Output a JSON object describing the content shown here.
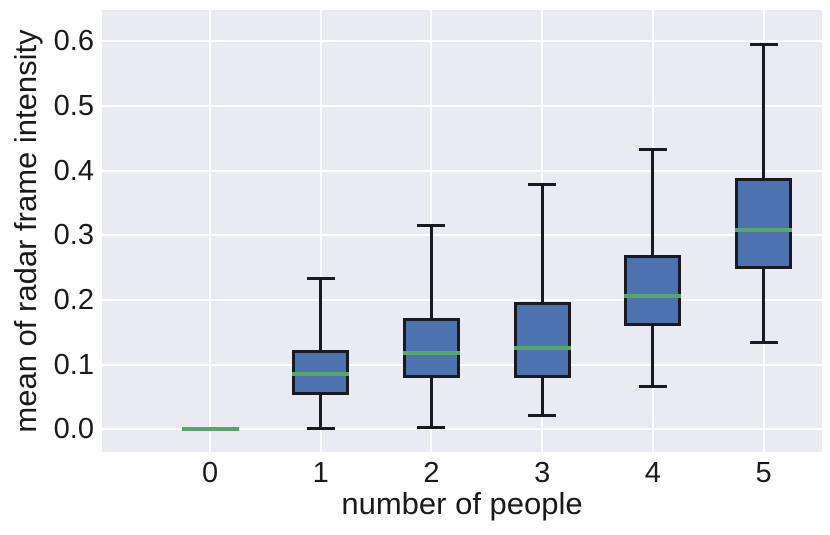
{
  "chart_data": {
    "type": "box",
    "title": "",
    "xlabel": "number of people",
    "ylabel": "mean of radar frame intensity",
    "categories": [
      "0",
      "1",
      "2",
      "3",
      "4",
      "5"
    ],
    "series": [
      {
        "category": "0",
        "whisker_low": 0.0,
        "q1": 0.0,
        "median": 0.0,
        "q3": 0.0,
        "whisker_high": 0.0
      },
      {
        "category": "1",
        "whisker_low": 0.001,
        "q1": 0.053,
        "median": 0.085,
        "q3": 0.123,
        "whisker_high": 0.233
      },
      {
        "category": "2",
        "whisker_low": 0.003,
        "q1": 0.08,
        "median": 0.118,
        "q3": 0.172,
        "whisker_high": 0.315
      },
      {
        "category": "3",
        "whisker_low": 0.022,
        "q1": 0.08,
        "median": 0.126,
        "q3": 0.197,
        "whisker_high": 0.378
      },
      {
        "category": "4",
        "whisker_low": 0.067,
        "q1": 0.16,
        "median": 0.206,
        "q3": 0.27,
        "whisker_high": 0.432
      },
      {
        "category": "5",
        "whisker_low": 0.134,
        "q1": 0.248,
        "median": 0.308,
        "q3": 0.388,
        "whisker_high": 0.595
      }
    ],
    "yticks": [
      0.0,
      0.1,
      0.2,
      0.3,
      0.4,
      0.5,
      0.6
    ],
    "ytick_labels": [
      "0.0",
      "0.1",
      "0.2",
      "0.3",
      "0.4",
      "0.5",
      "0.6"
    ],
    "ylim": [
      -0.035,
      0.6483
    ],
    "xlim": [
      -0.976,
      5.528
    ],
    "grid": "on",
    "legend": "none",
    "outliers": [],
    "colors": {
      "box_fill": "#4C72B0",
      "box_edge": "#191922",
      "median": "#55A868",
      "whisker": "#191922",
      "plot_background": "#EAEAF2",
      "gridline": "#FFFFFF",
      "text": "#1A1A1A",
      "figure_background": "#FFFFFF"
    }
  }
}
